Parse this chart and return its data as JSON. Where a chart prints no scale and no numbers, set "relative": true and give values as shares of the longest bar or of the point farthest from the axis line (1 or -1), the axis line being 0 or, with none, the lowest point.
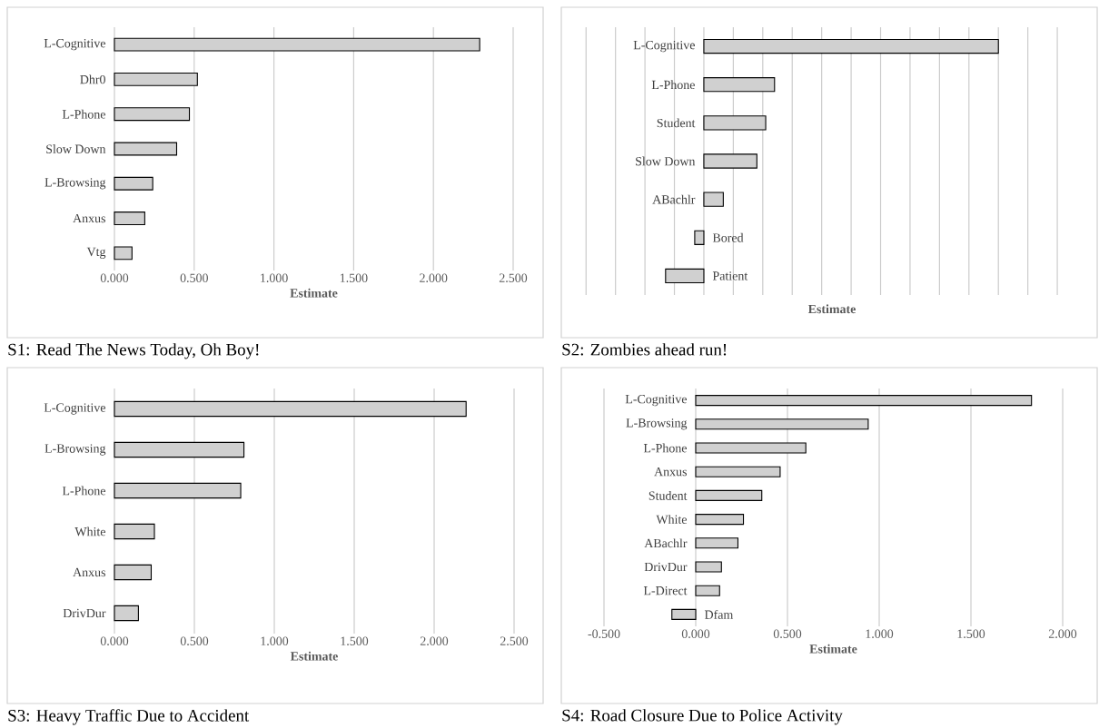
{
  "chart_data": [
    {
      "type": "bar",
      "orientation": "horizontal",
      "title": "S1: Read The News Today, Oh Boy!",
      "xlabel": "Estimate",
      "categories": [
        "L-Cognitive",
        "Dhr0",
        "L-Phone",
        "Slow Down",
        "L-Browsing",
        "Anxus",
        "Vtg"
      ],
      "values": [
        2.29,
        0.52,
        0.47,
        0.39,
        0.24,
        0.19,
        0.11
      ],
      "color": "#d0d0d0",
      "xlim": [
        0,
        2.5
      ],
      "xticks": [
        {
          "value": 0,
          "label": "0.000"
        },
        {
          "value": 0.5,
          "label": "0.500"
        },
        {
          "value": 1,
          "label": "1.000"
        },
        {
          "value": 1.5,
          "label": "1.500"
        },
        {
          "value": 2,
          "label": "2.000"
        },
        {
          "value": 2.5,
          "label": "2.500"
        }
      ],
      "grid": "x"
    },
    {
      "type": "bar",
      "orientation": "horizontal",
      "relative": true,
      "title": "S2: Zombies ahead run!",
      "xlabel": "Estimate",
      "categories": [
        "L-Cognitive",
        "L-Phone",
        "Student",
        "Slow Down",
        "ABachlr",
        "Bored",
        "Patient"
      ],
      "values": [
        1,
        0.24,
        0.21,
        0.18,
        0.066,
        -0.031,
        -0.13
      ],
      "color": "#d0d0d0",
      "grid": "x"
    },
    {
      "type": "bar",
      "orientation": "horizontal",
      "title": "S3: Heavy Traffic  Due to Accident",
      "xlabel": "Estimate",
      "categories": [
        "L-Cognitive",
        "L-Browsing",
        "L-Phone",
        "White",
        "Anxus",
        "DrivDur"
      ],
      "values": [
        2.2,
        0.81,
        0.79,
        0.25,
        0.23,
        0.15
      ],
      "color": "#d0d0d0",
      "xlim": [
        0,
        2.5
      ],
      "xticks": [
        {
          "value": 0,
          "label": "0.000"
        },
        {
          "value": 0.5,
          "label": "0.500"
        },
        {
          "value": 1,
          "label": "1.000"
        },
        {
          "value": 1.5,
          "label": "1.500"
        },
        {
          "value": 2,
          "label": "2.000"
        },
        {
          "value": 2.5,
          "label": "2.500"
        }
      ],
      "grid": "x"
    },
    {
      "type": "bar",
      "orientation": "horizontal",
      "title": "S4: Road Closure Due to Police Activity",
      "xlabel": "Estimate",
      "categories": [
        "L-Cognitive",
        "L-Browsing",
        "L-Phone",
        "Anxus",
        "Student",
        "White",
        "ABachlr",
        "DrivDur",
        "L-Direct",
        "Dfam"
      ],
      "values": [
        1.83,
        0.94,
        0.6,
        0.46,
        0.36,
        0.26,
        0.23,
        0.14,
        0.13,
        -0.13
      ],
      "color": "#d0d0d0",
      "xlim": [
        -0.5,
        2
      ],
      "xticks": [
        {
          "value": -0.5,
          "label": "-0.500"
        },
        {
          "value": 0,
          "label": "0.000"
        },
        {
          "value": 0.5,
          "label": "0.500"
        },
        {
          "value": 1,
          "label": "1.000"
        },
        {
          "value": 1.5,
          "label": "1.500"
        },
        {
          "value": 2,
          "label": "2.000"
        }
      ],
      "grid": "x"
    }
  ]
}
